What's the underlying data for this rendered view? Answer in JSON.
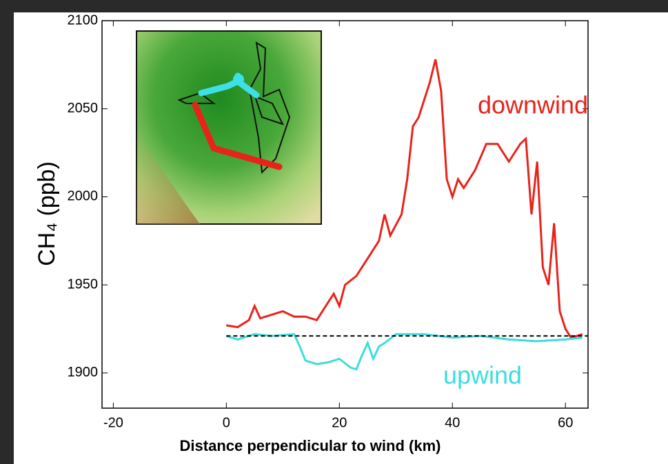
{
  "chart_data": {
    "type": "line",
    "x_label": "Distance perpendicular to wind (km)",
    "y_label": "CH₄ (ppb)",
    "xlim": [
      -22,
      64
    ],
    "xticks": [
      -20,
      0,
      20,
      40,
      60
    ],
    "ylim": [
      1880,
      2100
    ],
    "yticks": [
      1900,
      1950,
      2000,
      2050,
      2100
    ],
    "reference_line": 1921,
    "series": [
      {
        "name": "downwind",
        "color": "#e8231a",
        "x": [
          0,
          2,
          4,
          5,
          6,
          8,
          10,
          12,
          14,
          16,
          18,
          19,
          20,
          21,
          23,
          25,
          27,
          28,
          29,
          31,
          32,
          33,
          34,
          35,
          36,
          37,
          38,
          39,
          40,
          41,
          42,
          44,
          46,
          48,
          50,
          52,
          53,
          54,
          55,
          56,
          57,
          58,
          59,
          60,
          61,
          62,
          63
        ],
        "values": [
          1927,
          1926,
          1930,
          1938,
          1931,
          1933,
          1935,
          1932,
          1932,
          1930,
          1940,
          1945,
          1938,
          1950,
          1955,
          1965,
          1975,
          1990,
          1978,
          1990,
          2010,
          2040,
          2045,
          2055,
          2065,
          2078,
          2060,
          2010,
          2000,
          2010,
          2005,
          2015,
          2030,
          2030,
          2020,
          2030,
          2033,
          1990,
          2020,
          1960,
          1950,
          1985,
          1935,
          1925,
          1920,
          1921,
          1922
        ]
      },
      {
        "name": "upwind",
        "color": "#3ddcdc",
        "x": [
          0,
          2,
          5,
          8,
          12,
          13,
          14,
          16,
          18,
          20,
          22,
          23,
          24,
          25,
          26,
          27,
          28,
          30,
          35,
          40,
          45,
          50,
          55,
          60,
          63
        ],
        "values": [
          1921,
          1919,
          1922,
          1921,
          1922,
          1915,
          1907,
          1905,
          1906,
          1908,
          1903,
          1902,
          1910,
          1917,
          1908,
          1915,
          1917,
          1922,
          1922,
          1920,
          1921,
          1919,
          1918,
          1919,
          1920
        ]
      }
    ]
  }
}
